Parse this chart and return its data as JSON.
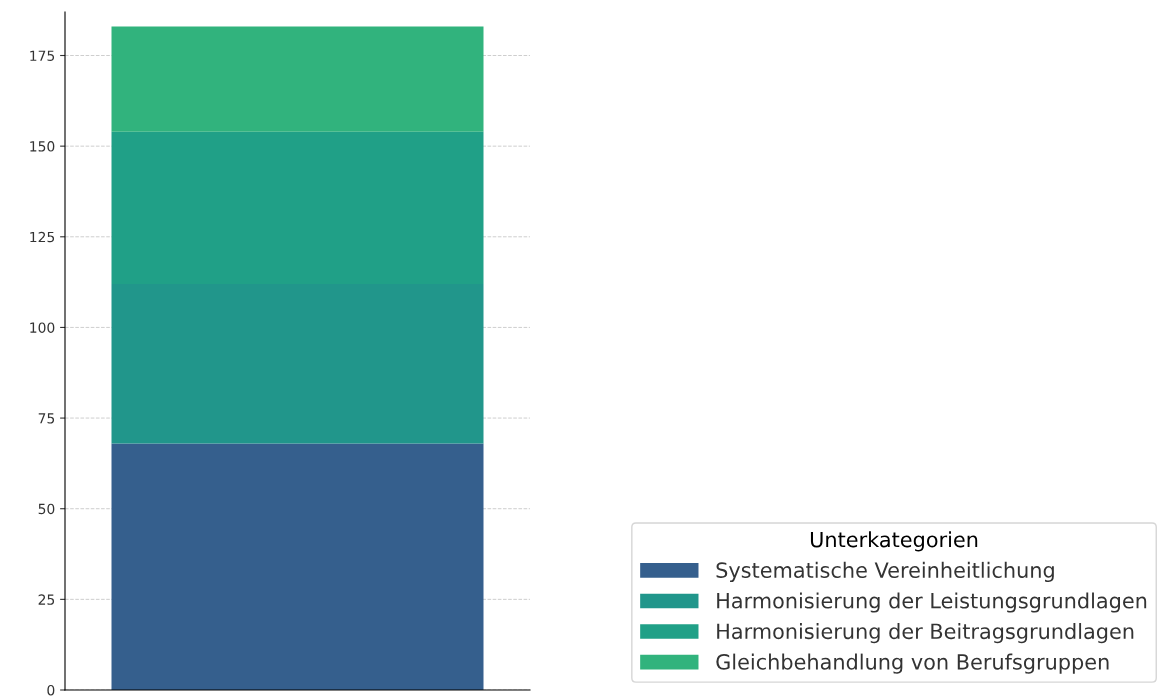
{
  "chart_data": {
    "type": "bar",
    "stacked": true,
    "categories": [
      null
    ],
    "series": [
      {
        "name": "Systematische Vereinheitlichung",
        "color": "#355f8d",
        "values": [
          68
        ]
      },
      {
        "name": "Harmonisierung der Leistungsgrundlagen",
        "color": "#21968b",
        "values": [
          44
        ]
      },
      {
        "name": "Harmonisierung der Beitragsgrundlagen",
        "color": "#20a087",
        "values": [
          42
        ]
      },
      {
        "name": "Gleichbehandlung von Berufsgruppen",
        "color": "#31b37d",
        "values": [
          29
        ]
      }
    ],
    "legend_title": "Unterkategorien",
    "legend": "bottom right",
    "ylim": [
      0,
      187
    ],
    "yticks": [
      0,
      25,
      50,
      75,
      100,
      125,
      150,
      175
    ],
    "grid": "y"
  }
}
